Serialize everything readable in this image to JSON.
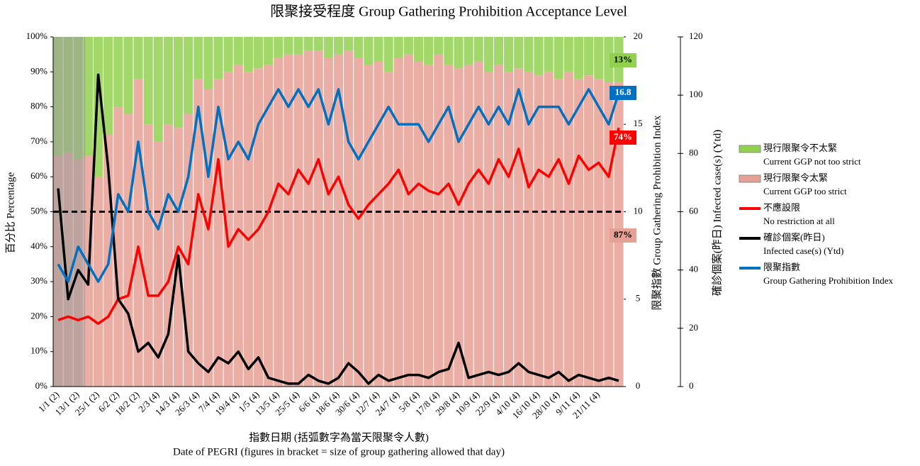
{
  "chart_data": {
    "type": "bar",
    "title": "限聚接受程度 Group Gathering Prohibition Acceptance Level",
    "x_title": [
      "指數日期 (括弧數字為當天限聚令人數)",
      "Date of PEGRI (figures in bracket = size of group gathering allowed that day)"
    ],
    "y_title": "百分比 Percentage",
    "y2_title": "限聚指數 Group Gathering Prohibition Index",
    "y3_title": "確診個案(昨日) Infected case(s) (Ytd)",
    "categories": [
      "1/1 (2)",
      null,
      "13/1 (2)",
      null,
      "25/1 (2)",
      null,
      "6/2 (2)",
      null,
      "18/2 (2)",
      null,
      "2/3 (4)",
      null,
      "14/3 (4)",
      null,
      "26/3 (4)",
      null,
      "7/4 (4)",
      null,
      "19/4 (4)",
      null,
      "1/5 (4)",
      null,
      "13/5 (4)",
      null,
      "25/5 (4)",
      null,
      "6/6 (4)",
      null,
      "18/6 (4)",
      null,
      "30/6 (4)",
      null,
      "12/7 (4)",
      null,
      "24/7 (4)",
      null,
      "5/8 (4)",
      null,
      "17/8 (4)",
      null,
      "29/8 (4)",
      null,
      "10/9 (4)",
      null,
      "22/9 (4)",
      null,
      "4/10 (4)",
      null,
      "16/10 (4)",
      null,
      "28/10 (4)",
      null,
      "9/11 (4)",
      null,
      "21/11 (4)",
      null,
      null
    ],
    "ylim": [
      0,
      100
    ],
    "yticks": [
      {
        "value": 0,
        "label": "0%"
      },
      {
        "value": 10,
        "label": "10%"
      },
      {
        "value": 20,
        "label": "20%"
      },
      {
        "value": 30,
        "label": "30%"
      },
      {
        "value": 40,
        "label": "40%"
      },
      {
        "value": 50,
        "label": "50%"
      },
      {
        "value": 60,
        "label": "60%"
      },
      {
        "value": 70,
        "label": "70%"
      },
      {
        "value": 80,
        "label": "80%"
      },
      {
        "value": 90,
        "label": "90%"
      },
      {
        "value": 100,
        "label": "100%"
      }
    ],
    "y2lim": [
      0,
      20
    ],
    "y2ticks": [
      0,
      5,
      10,
      15,
      20
    ],
    "y3lim": [
      0,
      120
    ],
    "y3ticks": [
      0,
      20,
      40,
      60,
      80,
      100,
      120
    ],
    "reference_line": 50,
    "series": [
      {
        "name": "現行限聚令不太緊",
        "name_en": "Current GGP not too strict",
        "kind": "stack",
        "color": "#92d050",
        "axis": "y",
        "values": [
          34,
          33,
          35,
          34,
          40,
          28,
          20,
          22,
          12,
          25,
          30,
          25,
          26,
          22,
          12,
          15,
          12,
          10,
          8,
          10,
          9,
          8,
          6,
          5,
          5,
          4,
          4,
          6,
          5,
          4,
          6,
          8,
          7,
          10,
          6,
          5,
          7,
          8,
          5,
          8,
          9,
          8,
          7,
          10,
          8,
          10,
          9,
          10,
          11,
          10,
          12,
          10,
          12,
          11,
          12,
          13,
          13
        ],
        "value_labels": [
          null,
          null,
          null,
          null,
          null,
          null,
          null,
          null,
          null,
          null,
          null,
          null,
          null,
          null,
          null,
          null,
          null,
          null,
          null,
          null,
          null,
          null,
          null,
          null,
          null,
          null,
          null,
          null,
          null,
          null,
          null,
          null,
          null,
          null,
          null,
          null,
          null,
          null,
          null,
          null,
          null,
          null,
          null,
          null,
          null,
          null,
          null,
          null,
          null,
          null,
          null,
          null,
          null,
          null,
          null,
          null,
          "13%"
        ]
      },
      {
        "name": "現行限聚令太緊",
        "name_en": "Current GGP too strict",
        "kind": "stack",
        "color": "#e6a095",
        "axis": "y",
        "values": [
          66,
          67,
          65,
          66,
          60,
          72,
          80,
          78,
          88,
          75,
          70,
          75,
          74,
          78,
          88,
          85,
          88,
          90,
          92,
          90,
          91,
          92,
          94,
          95,
          95,
          96,
          96,
          94,
          95,
          96,
          94,
          92,
          93,
          90,
          94,
          95,
          93,
          92,
          95,
          92,
          91,
          92,
          93,
          90,
          92,
          90,
          91,
          90,
          89,
          90,
          88,
          90,
          88,
          89,
          88,
          87,
          87
        ],
        "value_labels": [
          null,
          null,
          null,
          null,
          null,
          null,
          null,
          null,
          null,
          null,
          null,
          null,
          null,
          null,
          null,
          null,
          null,
          null,
          null,
          null,
          null,
          null,
          null,
          null,
          null,
          null,
          null,
          null,
          null,
          null,
          null,
          null,
          null,
          null,
          null,
          null,
          null,
          null,
          null,
          null,
          null,
          null,
          null,
          null,
          null,
          null,
          null,
          null,
          null,
          null,
          null,
          null,
          null,
          null,
          null,
          null,
          "87%"
        ]
      },
      {
        "name": "不應設限",
        "name_en": "No restriction at all",
        "kind": "line",
        "color": "#ff0000",
        "axis": "y",
        "values": [
          19,
          20,
          19,
          20,
          18,
          20,
          25,
          26,
          40,
          26,
          26,
          30,
          40,
          35,
          55,
          45,
          65,
          40,
          45,
          42,
          45,
          50,
          58,
          55,
          62,
          58,
          65,
          55,
          60,
          52,
          48,
          52,
          55,
          58,
          62,
          55,
          58,
          56,
          55,
          58,
          52,
          58,
          62,
          58,
          65,
          60,
          68,
          57,
          62,
          60,
          65,
          58,
          66,
          62,
          64,
          60,
          74
        ],
        "value_labels": [
          null,
          null,
          null,
          null,
          null,
          null,
          null,
          null,
          null,
          null,
          null,
          null,
          null,
          null,
          null,
          null,
          null,
          null,
          null,
          null,
          null,
          null,
          null,
          null,
          null,
          null,
          null,
          null,
          null,
          null,
          null,
          null,
          null,
          null,
          null,
          null,
          null,
          null,
          null,
          null,
          null,
          null,
          null,
          null,
          null,
          null,
          null,
          null,
          null,
          null,
          null,
          null,
          null,
          null,
          null,
          null,
          "74%"
        ]
      },
      {
        "name": "確診個案(昨日)",
        "name_en": "Infected case(s) (Ytd)",
        "kind": "line",
        "color": "#000000",
        "axis": "y3",
        "values": [
          68,
          30,
          40,
          35,
          107,
          75,
          30,
          25,
          12,
          15,
          10,
          18,
          45,
          12,
          8,
          5,
          10,
          8,
          12,
          6,
          10,
          3,
          2,
          1,
          1,
          4,
          2,
          1,
          3,
          8,
          5,
          1,
          4,
          2,
          3,
          4,
          4,
          3,
          5,
          6,
          15,
          3,
          4,
          5,
          4,
          5,
          8,
          5,
          4,
          3,
          5,
          2,
          4,
          3,
          2,
          3,
          2
        ]
      },
      {
        "name": "限聚指數",
        "name_en": "Group Gathering Prohibition Index",
        "kind": "line",
        "color": "#0070c0",
        "axis": "y2",
        "values": [
          7,
          6,
          8,
          7,
          6,
          7,
          11,
          10,
          14,
          10,
          9,
          11,
          10,
          12,
          16,
          12,
          16,
          13,
          14,
          13,
          15,
          16,
          17,
          16,
          17,
          16,
          17,
          15,
          17,
          14,
          13,
          14,
          15,
          16,
          15,
          15,
          15,
          14,
          15,
          16,
          14,
          15,
          16,
          15,
          16,
          15,
          17,
          15,
          16,
          16,
          16,
          15,
          16,
          17,
          16,
          15,
          16.8
        ],
        "value_labels": [
          null,
          null,
          null,
          null,
          null,
          null,
          null,
          null,
          null,
          null,
          null,
          null,
          null,
          null,
          null,
          null,
          null,
          null,
          null,
          null,
          null,
          null,
          null,
          null,
          null,
          null,
          null,
          null,
          null,
          null,
          null,
          null,
          null,
          null,
          null,
          null,
          null,
          null,
          null,
          null,
          null,
          null,
          null,
          null,
          null,
          null,
          null,
          null,
          null,
          null,
          null,
          null,
          null,
          null,
          null,
          null,
          "16.8"
        ]
      }
    ]
  }
}
